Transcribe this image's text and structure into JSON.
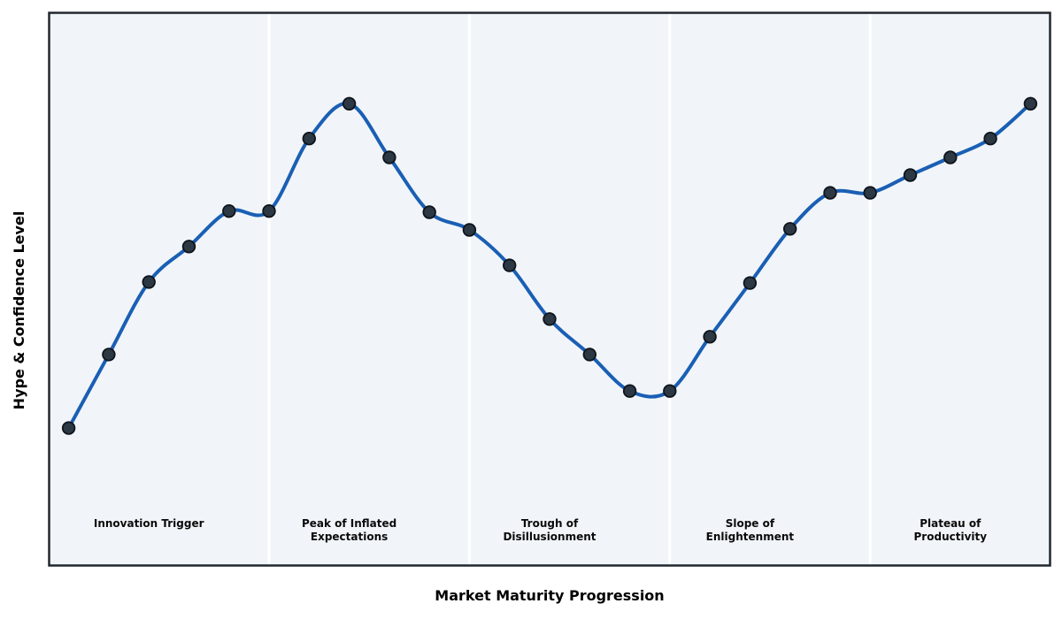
{
  "chart_data": {
    "type": "line",
    "title": "",
    "xlabel": "Market Maturity Progression",
    "ylabel": "Hype & Confidence Level",
    "x": [
      0,
      1,
      2,
      3,
      4,
      5,
      6,
      7,
      8,
      9,
      10,
      11,
      12,
      13,
      14,
      15,
      16,
      17,
      18,
      19,
      20,
      21,
      22,
      23,
      24
    ],
    "y": [
      24.9,
      38.2,
      51.3,
      57.7,
      64.1,
      64.1,
      77.2,
      83.5,
      73.8,
      63.9,
      60.7,
      54.3,
      44.6,
      38.2,
      31.6,
      31.6,
      41.4,
      51.1,
      60.9,
      67.4,
      67.4,
      70.6,
      73.8,
      77.2,
      83.5
    ],
    "xlim": [
      -0.5,
      24.5
    ],
    "ylim": [
      0,
      100
    ],
    "grid": false,
    "axis_ticks": "none",
    "legend": "none",
    "smooth": true,
    "phases": [
      {
        "name": "Innovation Trigger",
        "lines": [
          "Innovation Trigger"
        ],
        "x_center": 2
      },
      {
        "name": "Peak of Inflated Expectations",
        "lines": [
          "Peak of Inflated",
          "Expectations"
        ],
        "x_center": 7
      },
      {
        "name": "Trough of Disillusionment",
        "lines": [
          "Trough of",
          "Disillusionment"
        ],
        "x_center": 12
      },
      {
        "name": "Slope of Enlightenment",
        "lines": [
          "Slope of",
          "Enlightenment"
        ],
        "x_center": 17
      },
      {
        "name": "Plateau of Productivity",
        "lines": [
          "Plateau of",
          "Productivity"
        ],
        "x_center": 22
      }
    ],
    "phase_divider_x": [
      5,
      10,
      15,
      20
    ],
    "colors": {
      "line": "#1a5fb4",
      "marker_fill": "#2c3844",
      "marker_edge": "#0e141b",
      "plot_background": "#f1f5f9",
      "divider": "#ffffff",
      "frame": "#21272f",
      "label_text": "#0a0a0a",
      "figure_background": "#ffffff"
    }
  }
}
